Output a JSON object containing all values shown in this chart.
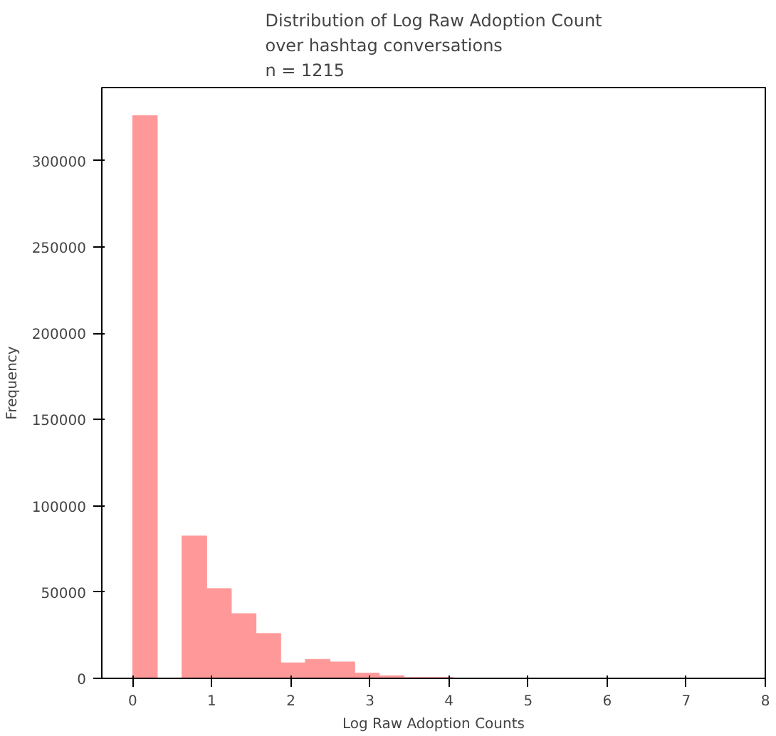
{
  "chart_data": {
    "type": "histogram",
    "title": "Distribution of Log Raw Adoption Count\nover hashtag conversations\nn = 1215",
    "xlabel": "Log Raw Adoption Counts",
    "ylabel": "Frequency",
    "color": "#ff9999",
    "bins": [
      0,
      0.312,
      0.624,
      0.936,
      1.248,
      1.56,
      1.872,
      2.184,
      2.496,
      2.808,
      3.12,
      3.432,
      3.744,
      4.056,
      4.368,
      4.68,
      4.992,
      5.304,
      5.616,
      5.928,
      6.24,
      6.552,
      6.864,
      7.176,
      7.488,
      7.8
    ],
    "values": [
      326000,
      0,
      82500,
      52000,
      37500,
      26000,
      9000,
      11000,
      9500,
      3000,
      1500,
      500,
      500,
      0,
      0,
      0,
      0,
      0,
      0,
      0,
      0,
      0,
      0,
      0,
      0
    ],
    "xlim": [
      -0.39,
      8.0
    ],
    "xticks": [
      0,
      1,
      2,
      3,
      4,
      5,
      6,
      7,
      8
    ],
    "ylim": [
      0,
      342300
    ],
    "yticks": [
      0,
      50000,
      100000,
      150000,
      200000,
      250000,
      300000
    ],
    "grid": false
  }
}
